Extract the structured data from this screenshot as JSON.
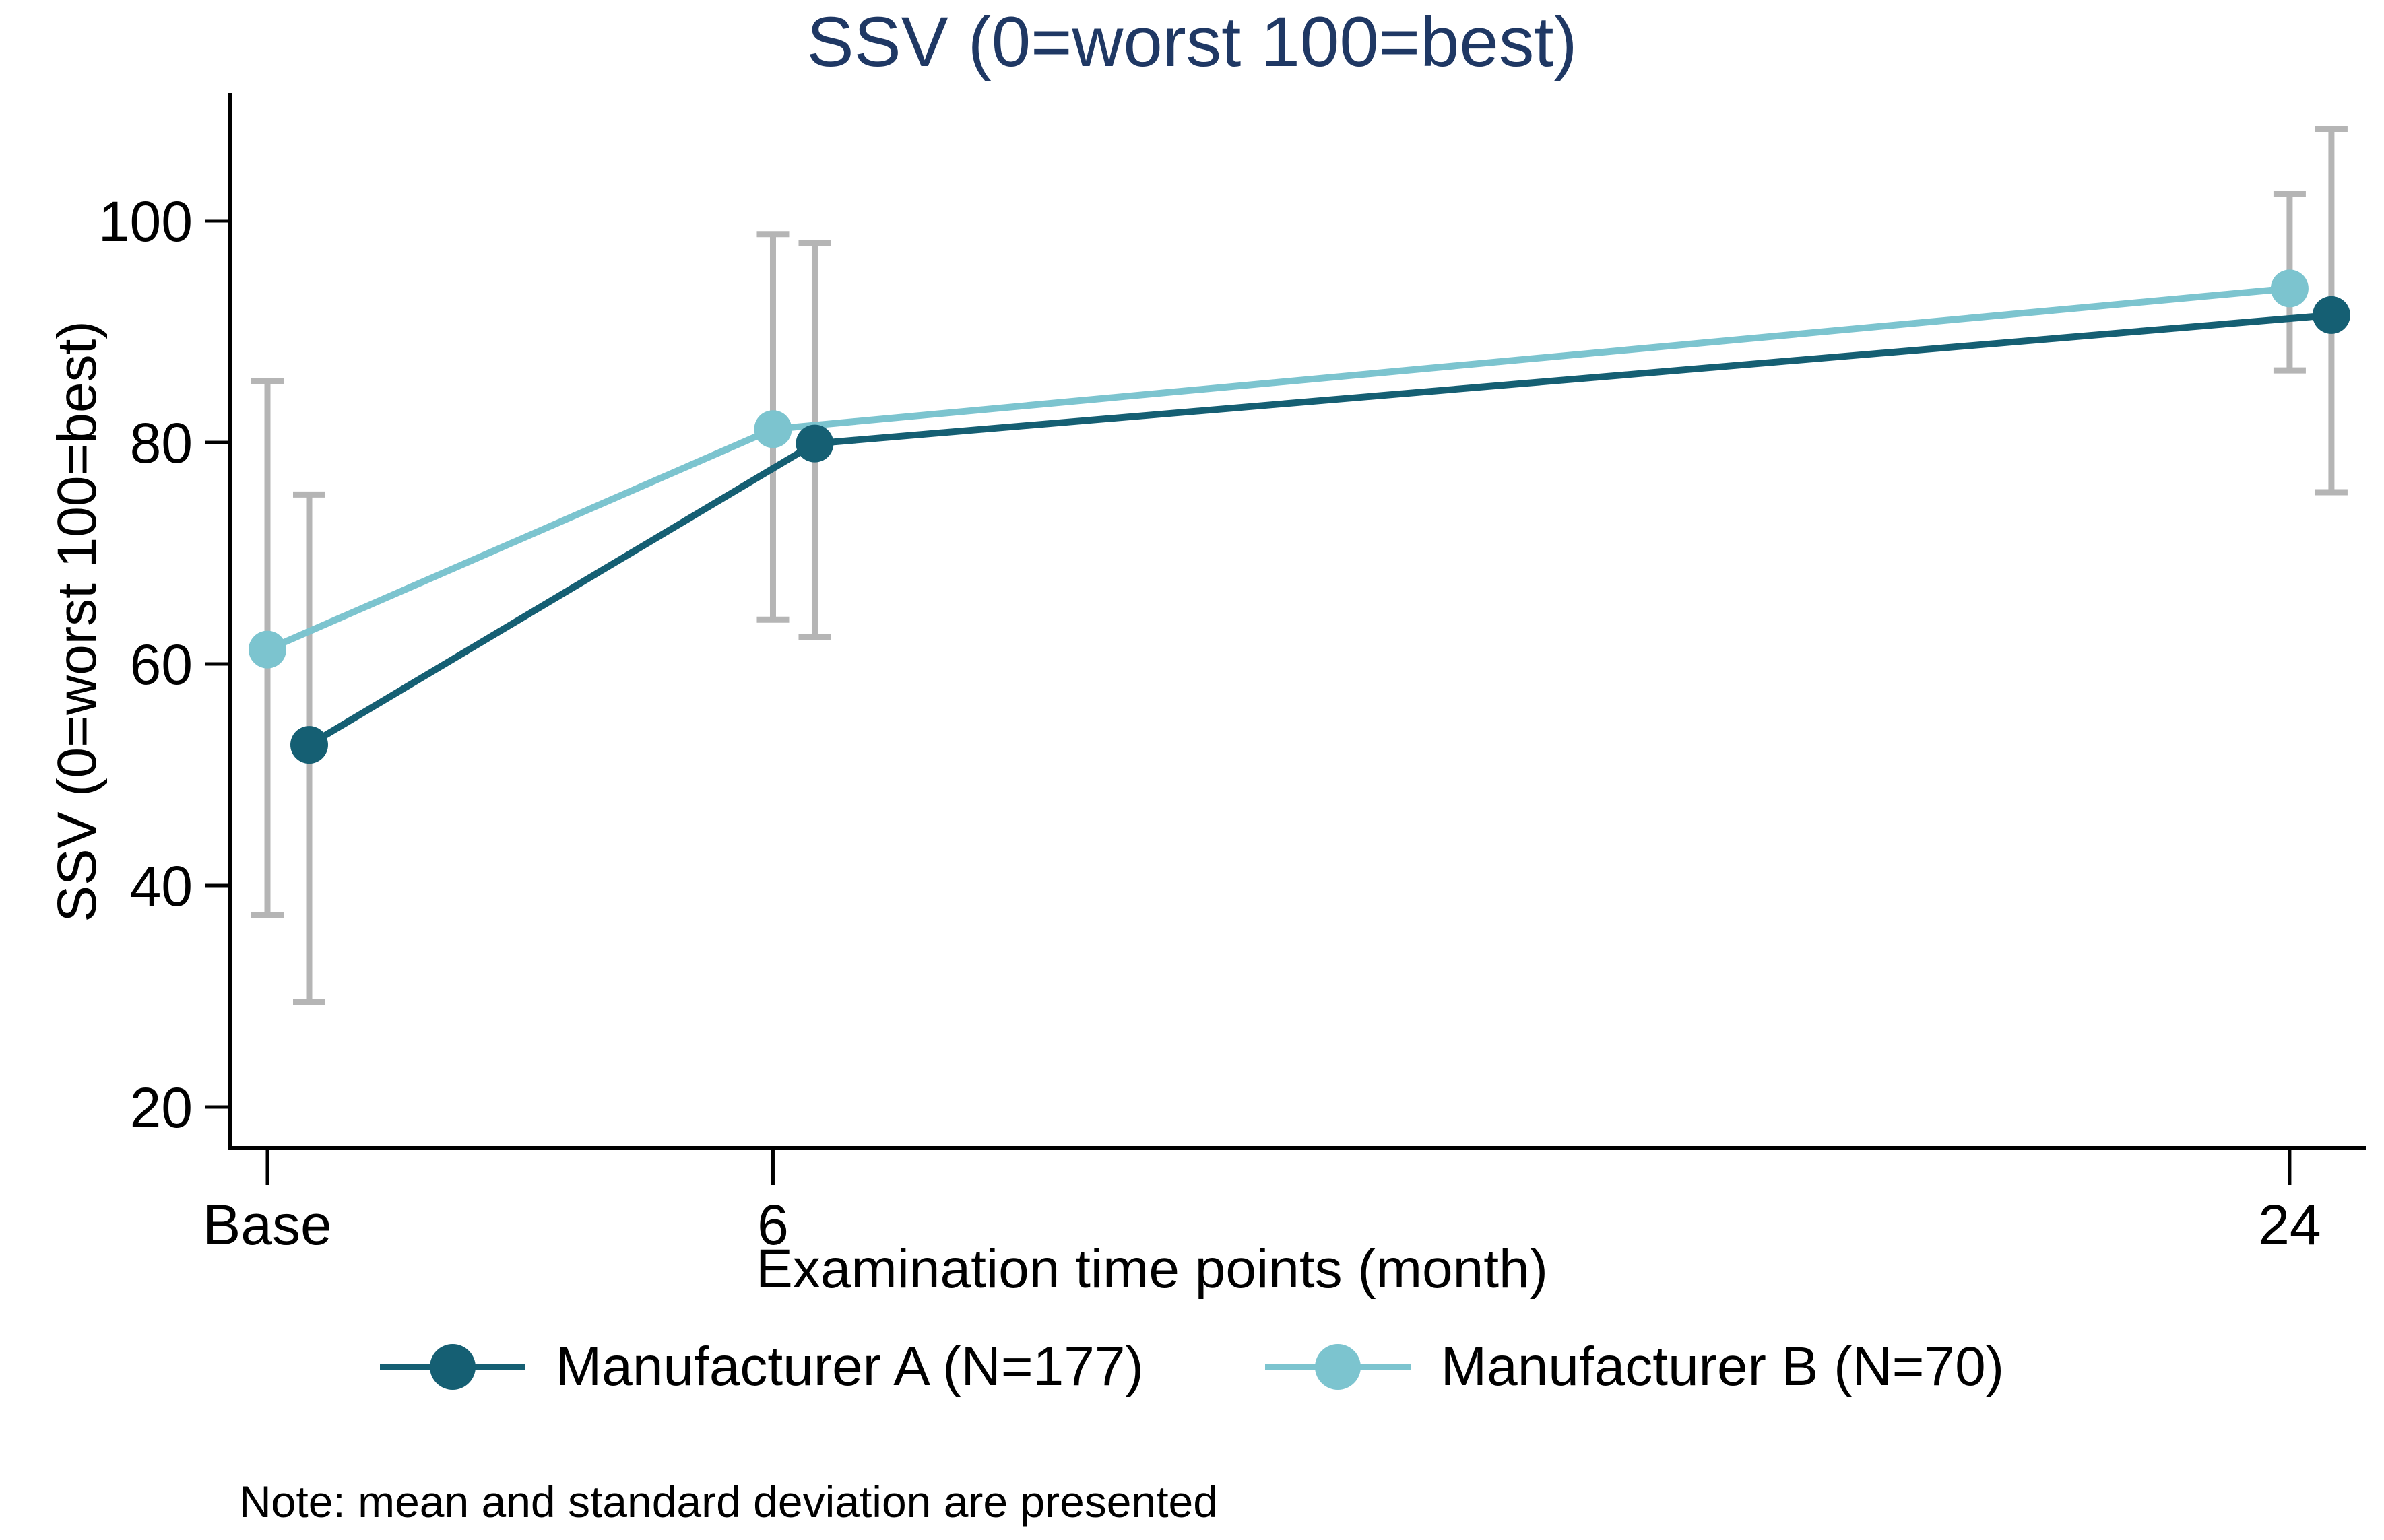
{
  "figure": {
    "title": "SSV (0=worst 100=best)",
    "note": "Note: mean and standard deviation are presented",
    "title_color": "#1f3864"
  },
  "chart_data": {
    "type": "line",
    "title": "SSV (0=worst 100=best)",
    "xlabel": "Examination time points (month)",
    "ylabel": "SSV (0=worst 100=best)",
    "x": [
      0,
      6,
      24
    ],
    "x_tick_labels": [
      "Base",
      "6",
      "24"
    ],
    "y_ticks": [
      20,
      40,
      60,
      80,
      100
    ],
    "ylim": [
      14,
      111.5
    ],
    "grid": false,
    "legend_position": "bottom",
    "error_bars": "mean ± standard deviation",
    "error_bar_color": "#b5b5b5",
    "axis_color": "#000000",
    "series": [
      {
        "name": "Manufacturer A (N=177)",
        "color": "#155f73",
        "means": [
          52.7,
          79.9,
          91.5
        ],
        "sd_low": [
          29.5,
          62.4,
          75.5
        ],
        "sd_high": [
          75.3,
          98.0,
          108.3
        ]
      },
      {
        "name": "Manufacturer B (N=70)",
        "color": "#7cc4cf",
        "means": [
          61.3,
          81.2,
          93.9
        ],
        "sd_low": [
          37.3,
          64.0,
          86.5
        ],
        "sd_high": [
          85.5,
          98.8,
          102.4
        ]
      }
    ]
  }
}
